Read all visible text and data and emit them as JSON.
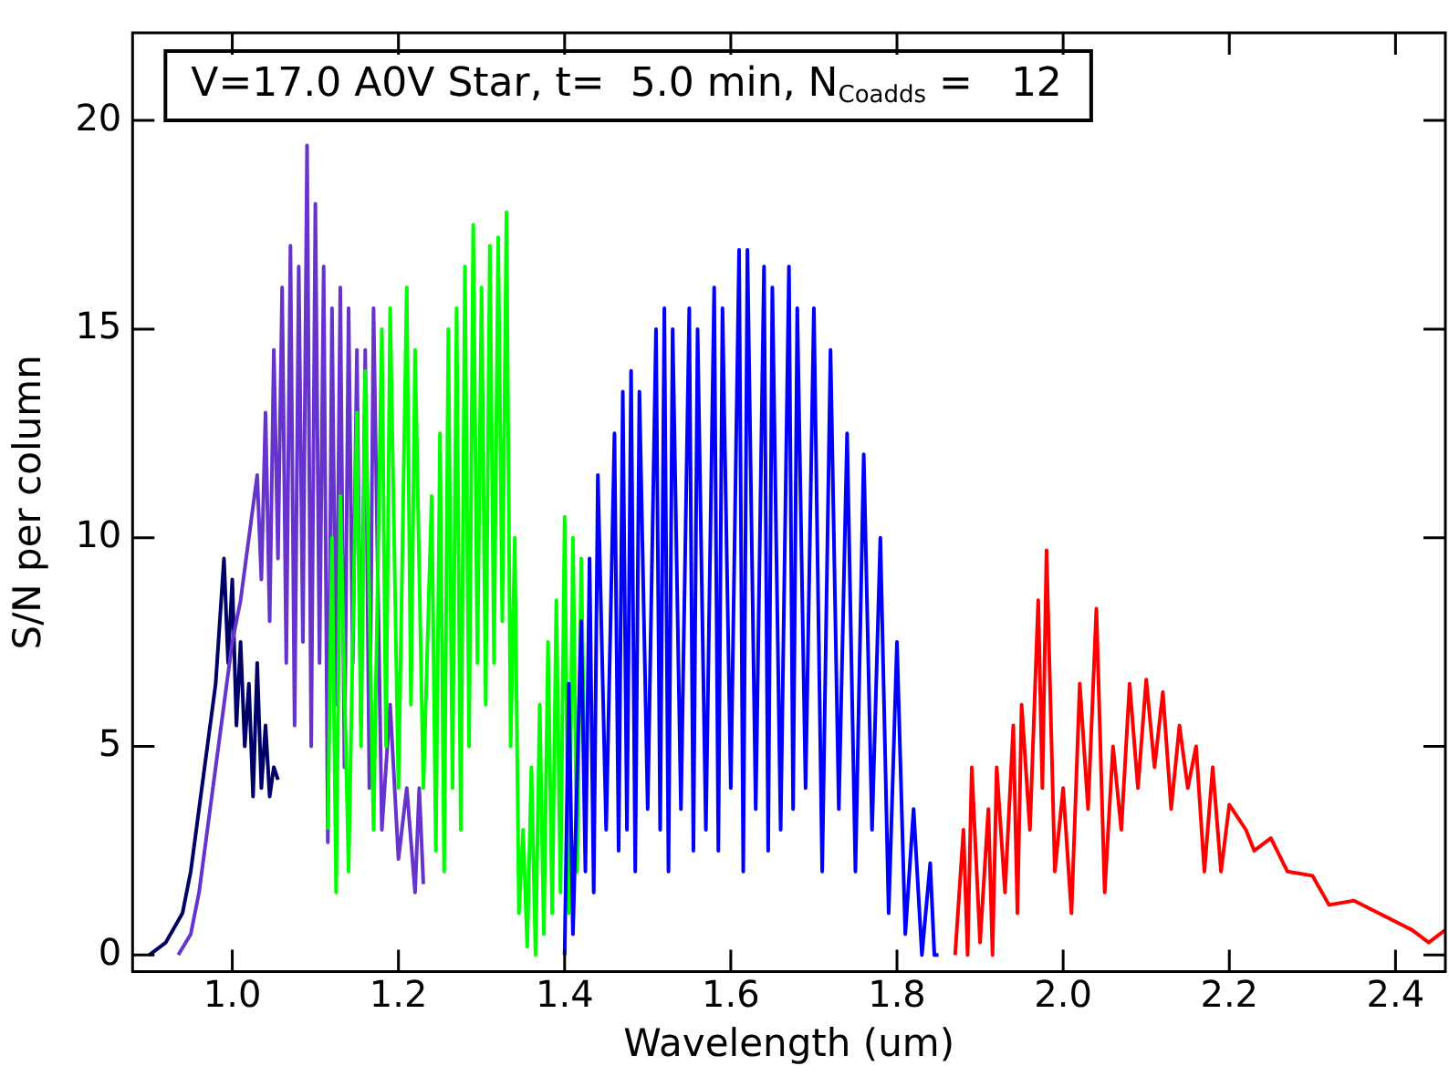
{
  "chart_data": {
    "type": "line",
    "xlabel": "Wavelength (um)",
    "ylabel": "S/N per column",
    "annotations": [
      "V=17.0 A0V Star, t=  5.0 min, N$_{Coadds}$ =   12"
    ],
    "xlim": [
      0.88,
      2.46
    ],
    "xticks": [
      {
        "value": 1.0,
        "label": "1.0"
      },
      {
        "value": 1.2,
        "label": "1.2"
      },
      {
        "value": 1.4,
        "label": "1.4"
      },
      {
        "value": 1.6,
        "label": "1.6"
      },
      {
        "value": 1.8,
        "label": "1.8"
      },
      {
        "value": 2.0,
        "label": "2.0"
      },
      {
        "value": 2.2,
        "label": "2.2"
      },
      {
        "value": 2.4,
        "label": "2.4"
      }
    ],
    "ylim": [
      -0.4,
      22.1
    ],
    "yticks": [
      0,
      5,
      10,
      15,
      20
    ],
    "grid": false,
    "legend": false,
    "marker": "none",
    "line_style": "solid",
    "series": [
      {
        "color": "#000066",
        "x": [
          0.9,
          0.92,
          0.94,
          0.95,
          0.96,
          0.97,
          0.98,
          0.985,
          0.99,
          0.995,
          1.0,
          1.005,
          1.01,
          1.015,
          1.02,
          1.025,
          1.03,
          1.035,
          1.04,
          1.045,
          1.05,
          1.055
        ],
        "values": [
          0,
          0.3,
          1,
          2,
          3.5,
          5,
          6.5,
          8,
          9.5,
          7,
          9,
          5.5,
          7.5,
          5,
          6.5,
          3.8,
          7,
          4,
          5.5,
          3.8,
          4.5,
          4.2
        ]
      },
      {
        "color": "#6633cc",
        "x": [
          0.935,
          0.95,
          0.96,
          0.97,
          0.98,
          0.99,
          1.0,
          1.01,
          1.02,
          1.03,
          1.035,
          1.04,
          1.045,
          1.05,
          1.055,
          1.06,
          1.065,
          1.07,
          1.075,
          1.08,
          1.085,
          1.09,
          1.095,
          1.1,
          1.105,
          1.11,
          1.115,
          1.12,
          1.125,
          1.13,
          1.135,
          1.14,
          1.145,
          1.15,
          1.155,
          1.16,
          1.165,
          1.17,
          1.18,
          1.19,
          1.2,
          1.21,
          1.22,
          1.225,
          1.23
        ],
        "values": [
          0,
          0.5,
          1.5,
          3,
          4.5,
          6,
          7.5,
          8.5,
          10,
          11.5,
          9,
          13,
          8,
          14.5,
          9.5,
          16,
          7,
          17,
          5.5,
          16.5,
          7.5,
          19.4,
          5,
          18,
          7,
          16.5,
          2.7,
          15.5,
          6,
          16,
          4.5,
          15.5,
          7,
          14.5,
          5.5,
          14.5,
          4,
          15.5,
          3,
          6,
          2.3,
          4,
          1.5,
          4,
          1.7
        ]
      },
      {
        "color": "#00ff00",
        "x": [
          1.115,
          1.12,
          1.125,
          1.13,
          1.14,
          1.15,
          1.155,
          1.16,
          1.17,
          1.18,
          1.185,
          1.19,
          1.2,
          1.21,
          1.215,
          1.22,
          1.23,
          1.24,
          1.245,
          1.25,
          1.255,
          1.26,
          1.265,
          1.27,
          1.275,
          1.28,
          1.285,
          1.29,
          1.295,
          1.3,
          1.305,
          1.31,
          1.315,
          1.32,
          1.325,
          1.33,
          1.335,
          1.34,
          1.345,
          1.35,
          1.355,
          1.36,
          1.365,
          1.37,
          1.375,
          1.38,
          1.385,
          1.39,
          1.395,
          1.4,
          1.405,
          1.41,
          1.415,
          1.42,
          1.425
        ],
        "values": [
          3,
          10,
          1.5,
          11,
          2,
          13,
          5,
          14,
          3,
          15,
          5,
          15.5,
          4,
          16,
          6,
          14.5,
          4,
          11,
          2.5,
          12.5,
          2,
          15,
          4,
          15.5,
          3,
          16.5,
          5,
          17.5,
          7,
          16,
          6,
          17,
          7,
          17.2,
          8,
          17.8,
          5,
          10,
          1,
          3,
          0.2,
          4.5,
          0,
          6,
          0.5,
          7.5,
          1,
          8.5,
          1.5,
          10.5,
          1,
          10,
          2,
          9.5,
          3
        ]
      },
      {
        "color": "#0000ff",
        "x": [
          1.4,
          1.405,
          1.41,
          1.42,
          1.425,
          1.43,
          1.435,
          1.44,
          1.45,
          1.46,
          1.465,
          1.47,
          1.475,
          1.48,
          1.485,
          1.49,
          1.5,
          1.51,
          1.515,
          1.52,
          1.525,
          1.53,
          1.54,
          1.55,
          1.555,
          1.56,
          1.57,
          1.58,
          1.585,
          1.59,
          1.6,
          1.61,
          1.615,
          1.62,
          1.63,
          1.64,
          1.645,
          1.65,
          1.66,
          1.67,
          1.675,
          1.68,
          1.69,
          1.7,
          1.71,
          1.72,
          1.73,
          1.74,
          1.75,
          1.76,
          1.77,
          1.78,
          1.79,
          1.8,
          1.81,
          1.82,
          1.83,
          1.84,
          1.845,
          1.85
        ],
        "values": [
          0,
          6.5,
          0.5,
          8,
          2,
          9.5,
          1.5,
          11.5,
          3,
          12.5,
          2.5,
          13.5,
          3,
          14,
          2,
          13.5,
          3.5,
          15,
          3,
          15.5,
          2,
          15,
          3.5,
          15.5,
          2.5,
          15,
          3,
          16,
          2.5,
          15.5,
          4,
          16.9,
          2,
          16.9,
          3.5,
          16.5,
          2.5,
          16,
          3,
          16.5,
          3.5,
          15.5,
          4,
          15.5,
          2,
          14.5,
          3.5,
          12.5,
          2,
          12,
          3,
          10,
          1,
          7.5,
          0.5,
          3.5,
          0,
          2.2,
          0,
          0
        ]
      },
      {
        "color": "#ff0000",
        "x": [
          1.87,
          1.88,
          1.885,
          1.89,
          1.9,
          1.91,
          1.915,
          1.92,
          1.93,
          1.94,
          1.945,
          1.95,
          1.96,
          1.97,
          1.975,
          1.98,
          1.99,
          2.0,
          2.01,
          2.02,
          2.03,
          2.04,
          2.05,
          2.06,
          2.07,
          2.08,
          2.09,
          2.1,
          2.11,
          2.12,
          2.13,
          2.14,
          2.15,
          2.16,
          2.17,
          2.18,
          2.19,
          2.2,
          2.22,
          2.23,
          2.25,
          2.27,
          2.3,
          2.32,
          2.35,
          2.38,
          2.4,
          2.42,
          2.44,
          2.46
        ],
        "values": [
          0,
          3,
          0,
          4.5,
          0.3,
          3.5,
          0,
          4.5,
          1.5,
          5.5,
          1,
          6,
          3,
          8.5,
          4,
          9.7,
          2,
          4,
          1,
          6.5,
          3.5,
          8.3,
          1.5,
          5,
          3,
          6.5,
          4,
          6.6,
          4.5,
          6.3,
          3.5,
          5.5,
          4,
          5,
          2,
          4.5,
          2,
          3.6,
          3,
          2.5,
          2.8,
          2,
          1.9,
          1.2,
          1.3,
          1,
          0.8,
          0.6,
          0.3,
          0.6
        ]
      }
    ]
  }
}
